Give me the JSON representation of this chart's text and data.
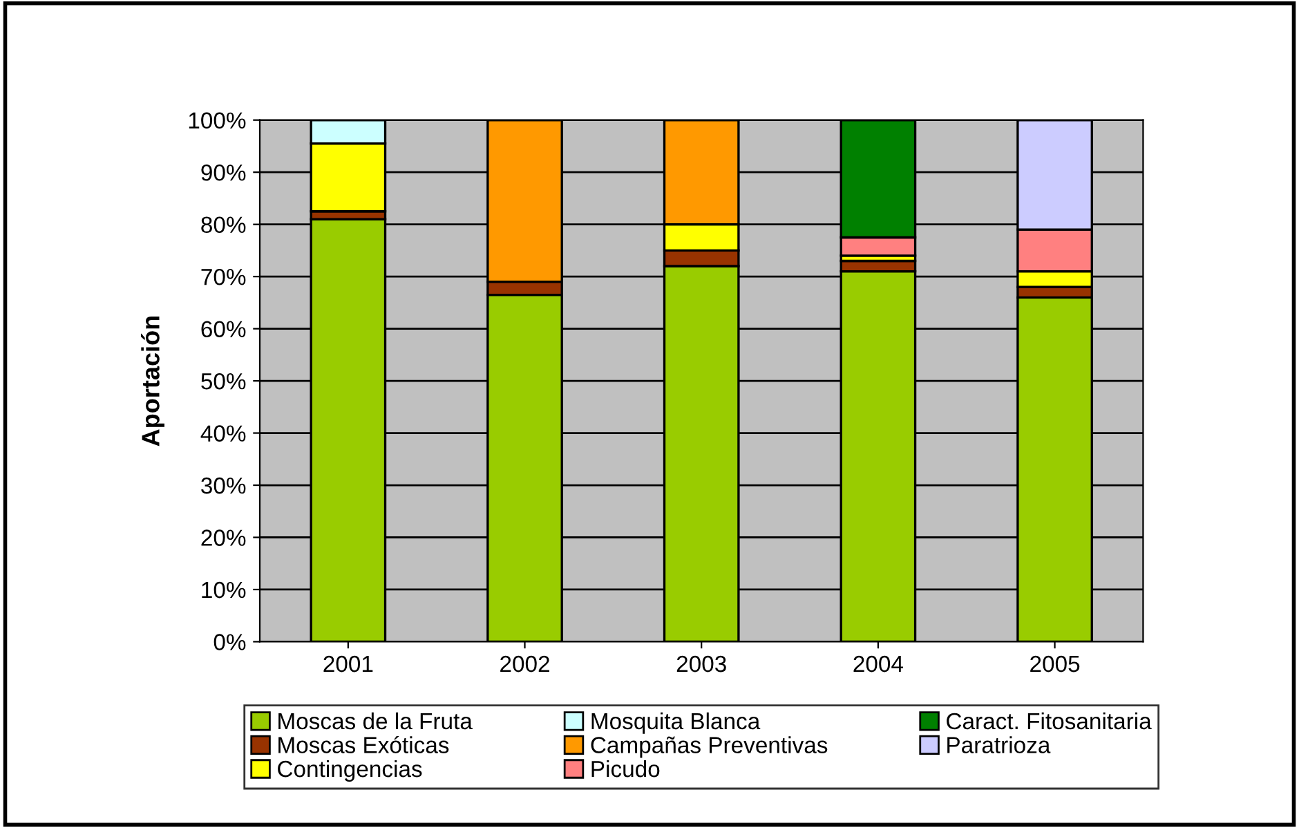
{
  "chart_data": {
    "type": "bar",
    "stacked": true,
    "ylabel": "Aportación",
    "categories": [
      "2001",
      "2002",
      "2003",
      "2004",
      "2005"
    ],
    "series": [
      {
        "name": "Moscas de la Fruta",
        "color": "#99cc00",
        "values": [
          81,
          66.5,
          72,
          71,
          66
        ]
      },
      {
        "name": "Moscas Exóticas",
        "color": "#993300",
        "values": [
          1.5,
          2.5,
          3,
          2,
          2
        ]
      },
      {
        "name": "Contingencias",
        "color": "#ffff00",
        "values": [
          13,
          null,
          5,
          1,
          3
        ]
      },
      {
        "name": "Mosquita Blanca",
        "color": "#ccffff",
        "values": [
          4.5,
          null,
          null,
          null,
          null
        ]
      },
      {
        "name": "Campañas Preventivas",
        "color": "#ff9900",
        "values": [
          null,
          31,
          20,
          null,
          null
        ]
      },
      {
        "name": "Picudo",
        "color": "#ff8080",
        "values": [
          null,
          null,
          null,
          3.5,
          8
        ]
      },
      {
        "name": "Caract. Fitosanitaria",
        "color": "#008000",
        "values": [
          null,
          null,
          null,
          22.5,
          null
        ]
      },
      {
        "name": "Paratrioza",
        "color": "#ccccff",
        "values": [
          null,
          null,
          null,
          null,
          21
        ]
      }
    ],
    "ylim": [
      0,
      100
    ],
    "yticks": [
      {
        "value": 0,
        "label": "0%"
      },
      {
        "value": 10,
        "label": "10%"
      },
      {
        "value": 20,
        "label": "20%"
      },
      {
        "value": 30,
        "label": "30%"
      },
      {
        "value": 40,
        "label": "40%"
      },
      {
        "value": 50,
        "label": "50%"
      },
      {
        "value": 60,
        "label": "60%"
      },
      {
        "value": 70,
        "label": "70%"
      },
      {
        "value": 80,
        "label": "80%"
      },
      {
        "value": 90,
        "label": "90%"
      },
      {
        "value": 100,
        "label": "100%"
      }
    ],
    "grid": "y",
    "legend": "bottom"
  }
}
